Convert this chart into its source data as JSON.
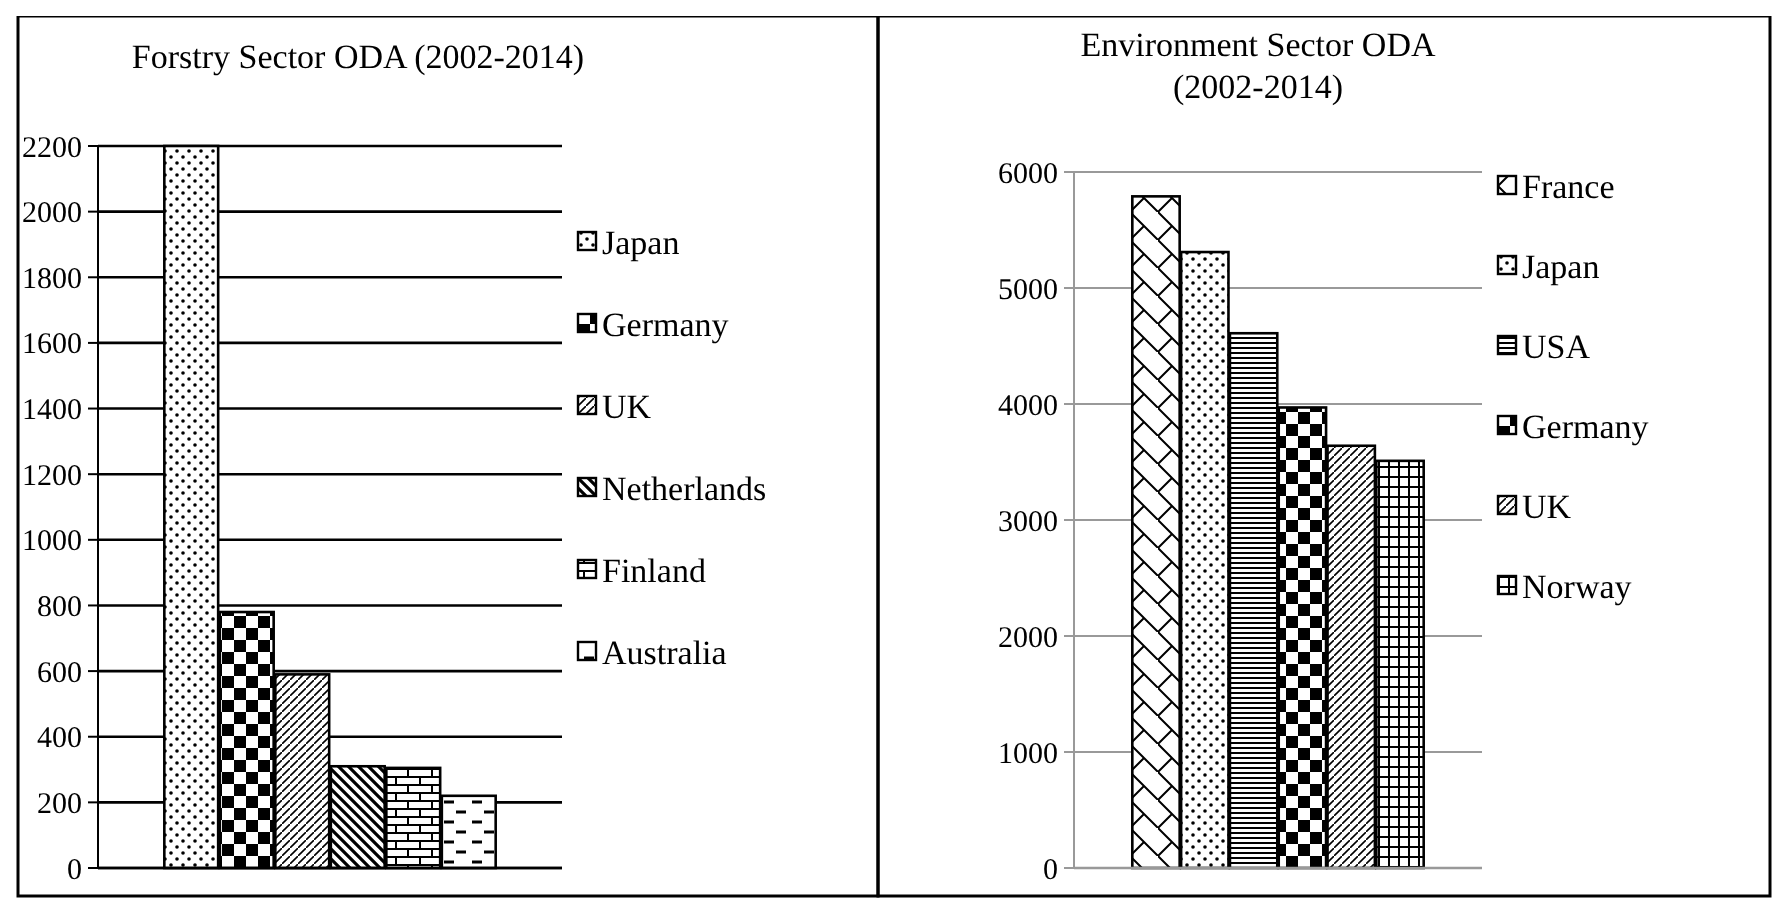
{
  "chart_data": [
    {
      "type": "bar",
      "title": "Forstry Sector ODA (2002-2014)",
      "categories": [
        null
      ],
      "series": [
        {
          "name": "Japan",
          "color": "#000000",
          "values": [
            2200
          ]
        },
        {
          "name": "Germany",
          "color": "#000000",
          "values": [
            780
          ]
        },
        {
          "name": "UK",
          "color": "#000000",
          "values": [
            590
          ]
        },
        {
          "name": "Netherlands",
          "color": "#000000",
          "values": [
            310
          ]
        },
        {
          "name": "Finland",
          "color": "#000000",
          "values": [
            305
          ]
        },
        {
          "name": "Australia",
          "color": "#000000",
          "values": [
            220
          ]
        }
      ],
      "ylim": [
        0,
        2200
      ],
      "yticks": [
        0,
        200,
        400,
        600,
        800,
        1000,
        1200,
        1400,
        1600,
        1800,
        2000,
        2200
      ],
      "grid": "y",
      "legend": "right"
    },
    {
      "type": "bar",
      "title": "Environment Sector ODA (2002-2014)",
      "categories": [
        null
      ],
      "series": [
        {
          "name": "France",
          "color": "#000000",
          "values": [
            5790
          ]
        },
        {
          "name": "Japan",
          "color": "#000000",
          "values": [
            5310
          ]
        },
        {
          "name": "USA",
          "color": "#000000",
          "values": [
            4610
          ]
        },
        {
          "name": "Germany",
          "color": "#000000",
          "values": [
            3970
          ]
        },
        {
          "name": "UK",
          "color": "#000000",
          "values": [
            3640
          ]
        },
        {
          "name": "Norway",
          "color": "#000000",
          "values": [
            3510
          ]
        }
      ],
      "ylim": [
        0,
        6000
      ],
      "yticks": [
        0,
        1000,
        2000,
        3000,
        4000,
        5000,
        6000
      ],
      "grid": "y",
      "legend": "right"
    }
  ]
}
